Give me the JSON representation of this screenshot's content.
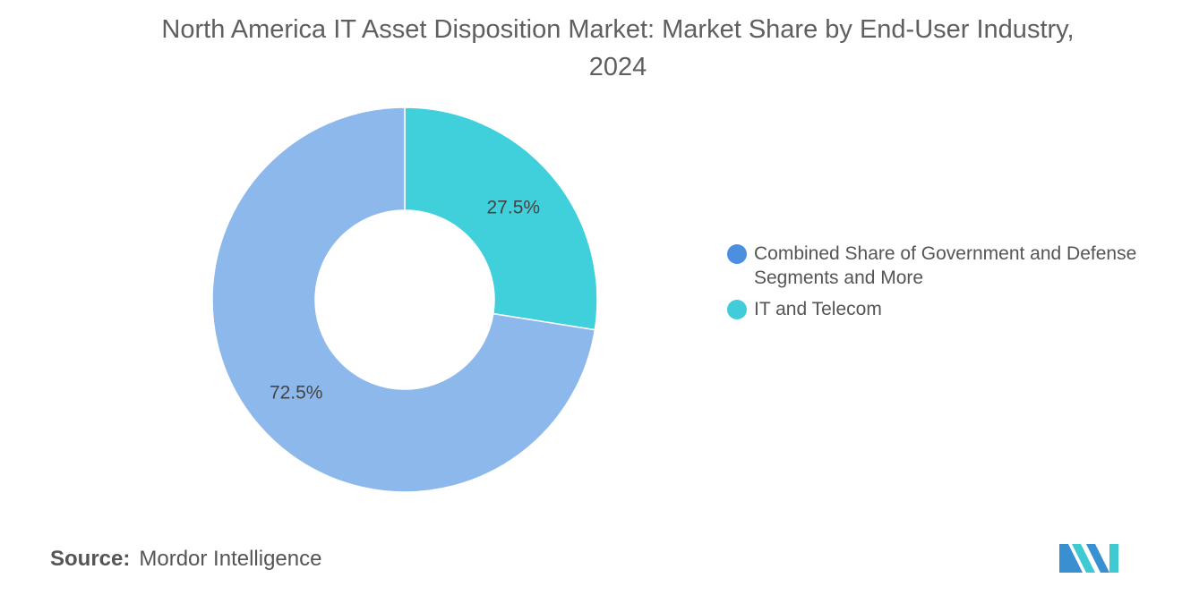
{
  "chart_data": {
    "type": "pie",
    "variant": "donut",
    "title": "North America IT Asset Disposition Market: Market Share by End-User Industry, 2024",
    "slices": [
      {
        "label": "IT and Telecom",
        "value": 27.5,
        "data_label": "27.5%",
        "color": "#40d0dc",
        "legend_color": "#40ccd8"
      },
      {
        "label": "Combined Share of Government and Defense Segments and More",
        "value": 72.5,
        "data_label": "72.5%",
        "color": "#8db8ec",
        "legend_color": "#4c8fe0"
      }
    ],
    "legend_order": [
      "Combined Share of Government and Defense Segments and More",
      "IT and Telecom"
    ],
    "legend_position": "right"
  },
  "source": {
    "key": "Source:",
    "value": "Mordor Intelligence"
  },
  "logo_icon": "mordor-intelligence-logo-icon",
  "colors": {
    "title": "#5f5f5f",
    "text": "#555555",
    "logo_primary": "#3a8fd0",
    "logo_secondary": "#3fc9d3"
  }
}
